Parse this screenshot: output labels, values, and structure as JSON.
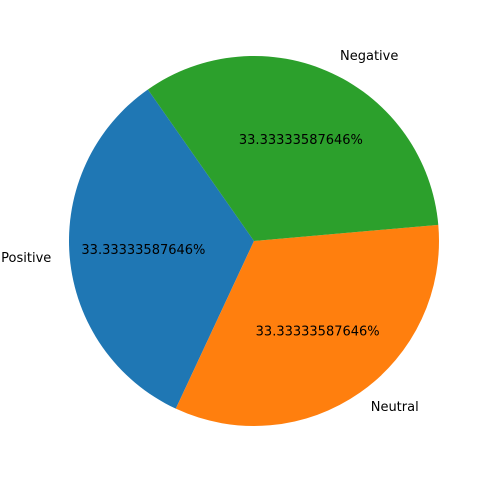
{
  "chart_data": {
    "type": "pie",
    "slices": [
      {
        "label": "Positive",
        "value": 33.33333587646,
        "pct_label": "33.33333587646%",
        "color": "#1f77b4"
      },
      {
        "label": "Neutral",
        "value": 33.33333587646,
        "pct_label": "33.33333587646%",
        "color": "#ff7f0e"
      },
      {
        "label": "Negative",
        "value": 33.33333587646,
        "pct_label": "33.33333587646%",
        "color": "#2ca02c"
      }
    ],
    "start_angle_deg": 125,
    "direction": "counterclockwise"
  }
}
